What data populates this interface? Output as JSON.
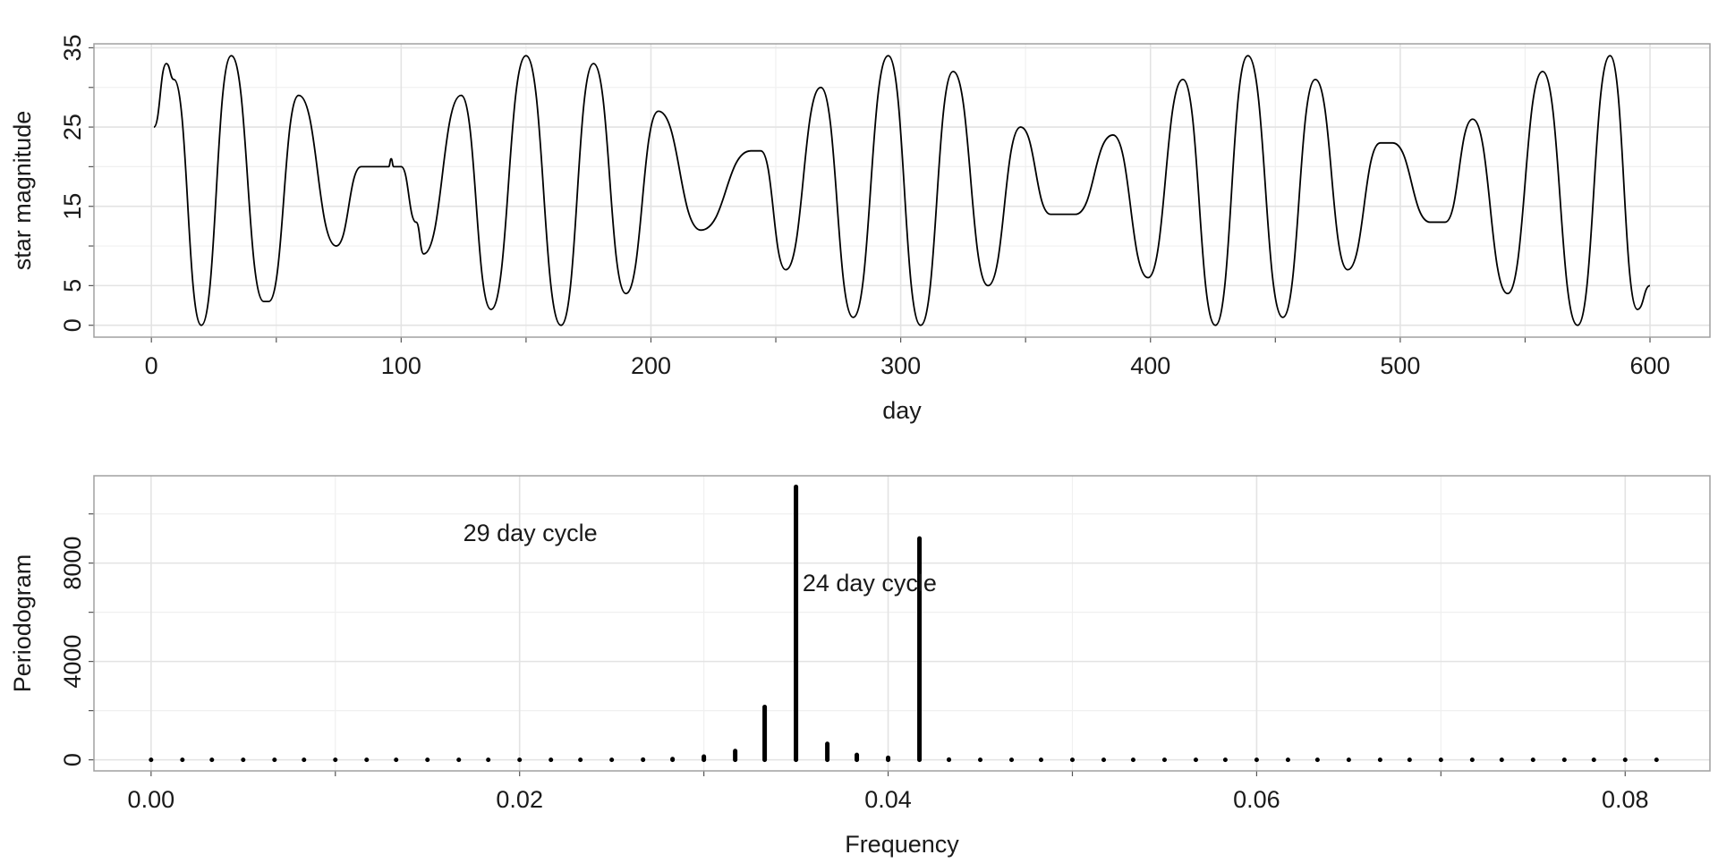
{
  "chart_data": [
    {
      "type": "line",
      "x_label": "day",
      "y_label": "star magnitude",
      "color": "#000000",
      "x": [
        1,
        6,
        9,
        20,
        32,
        45,
        47,
        59,
        74,
        84,
        95,
        96,
        97,
        100,
        106,
        109,
        124,
        136,
        150,
        164,
        177,
        190,
        203,
        220,
        240,
        244,
        254,
        268,
        281,
        295,
        308,
        321,
        335,
        348,
        360,
        370,
        385,
        399,
        413,
        426,
        439,
        453,
        466,
        479,
        492,
        497,
        512,
        518,
        529,
        543,
        557,
        571,
        584,
        595,
        600
      ],
      "values": [
        25,
        33,
        31,
        0,
        34,
        3,
        3,
        29,
        10,
        20,
        20,
        21,
        20,
        20,
        13,
        9,
        29,
        2,
        34,
        0,
        33,
        4,
        27,
        12,
        22,
        22,
        7,
        30,
        1,
        34,
        0,
        32,
        5,
        25,
        14,
        14,
        24,
        6,
        31,
        0,
        34,
        1,
        31,
        7,
        23,
        23,
        13,
        13,
        26,
        4,
        32,
        0,
        34,
        2,
        5
      ],
      "xlim": [
        -23,
        624
      ],
      "ylim": [
        -1.5,
        35.5
      ],
      "xticks": [
        0,
        100,
        200,
        300,
        400,
        500,
        600
      ],
      "x_minor_ticks": [
        50,
        150,
        250,
        350,
        450,
        550
      ],
      "yticks": [
        0,
        5,
        15,
        25,
        35
      ],
      "y_minor_ticks": [
        10,
        20,
        30
      ],
      "grid": true
    },
    {
      "type": "stem",
      "x_label": "Frequency",
      "y_label": "Periodogram",
      "color": "#000000",
      "x": [
        0,
        0.0017,
        0.0033,
        0.005,
        0.0067,
        0.0083,
        0.01,
        0.0117,
        0.0133,
        0.015,
        0.0167,
        0.0183,
        0.02,
        0.0217,
        0.0233,
        0.025,
        0.0267,
        0.0283,
        0.03,
        0.0317,
        0.0333,
        0.035,
        0.0367,
        0.0383,
        0.04,
        0.0417,
        0.0433,
        0.045,
        0.0467,
        0.0483,
        0.05,
        0.0517,
        0.0533,
        0.055,
        0.0567,
        0.0583,
        0.06,
        0.0617,
        0.0633,
        0.065,
        0.0667,
        0.0683,
        0.07,
        0.0717,
        0.0733,
        0.075,
        0.0767,
        0.0783,
        0.08,
        0.0817
      ],
      "values": [
        0,
        0,
        0,
        0,
        0,
        0,
        0,
        0,
        0,
        0,
        0,
        0,
        0,
        0,
        0,
        0,
        10,
        30,
        130,
        360,
        2150,
        11100,
        650,
        200,
        80,
        9000,
        10,
        0,
        0,
        0,
        0,
        0,
        0,
        0,
        0,
        0,
        0,
        0,
        0,
        0,
        0,
        0,
        0,
        0,
        0,
        0,
        0,
        0,
        0,
        0
      ],
      "xlim": [
        -0.0031,
        0.0846
      ],
      "ylim": [
        -450,
        11550
      ],
      "xticks": [
        {
          "value": 0,
          "label": "0.00"
        },
        {
          "value": 0.02,
          "label": "0.02"
        },
        {
          "value": 0.04,
          "label": "0.04"
        },
        {
          "value": 0.06,
          "label": "0.06"
        },
        {
          "value": 0.08,
          "label": "0.08"
        }
      ],
      "x_minor_ticks": [
        0.01,
        0.03,
        0.05,
        0.07
      ],
      "yticks": [
        0,
        4000,
        8000
      ],
      "y_minor_ticks": [
        2000,
        6000,
        10000
      ],
      "grid": true,
      "annotations": [
        "29 day cycle",
        "24 day cycle"
      ]
    }
  ]
}
